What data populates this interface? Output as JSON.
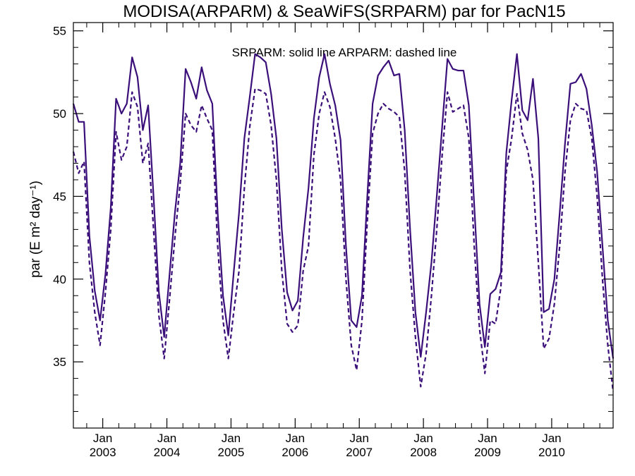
{
  "chart_data": {
    "type": "line",
    "title": "MODISA(ARPARM) & SeaWiFS(SRPARM)  par for PacN15",
    "annotation": "SRPARM: solid line   ARPARM: dashed line",
    "ylabel": "par (E m² day⁻¹)",
    "xlabel": "",
    "xlim": [
      2002.542,
      2010.958
    ],
    "ylim": [
      31,
      55.5
    ],
    "y_ticks": [
      35,
      40,
      45,
      50,
      55
    ],
    "x_ticks": [
      {
        "x": 2003.0,
        "top": "Jan",
        "bottom": "2003"
      },
      {
        "x": 2004.0,
        "top": "Jan",
        "bottom": "2004"
      },
      {
        "x": 2005.0,
        "top": "Jan",
        "bottom": "2005"
      },
      {
        "x": 2006.0,
        "top": "Jan",
        "bottom": "2006"
      },
      {
        "x": 2007.0,
        "top": "Jan",
        "bottom": "2007"
      },
      {
        "x": 2008.0,
        "top": "Jan",
        "bottom": "2008"
      },
      {
        "x": 2009.0,
        "top": "Jan",
        "bottom": "2009"
      },
      {
        "x": 2010.0,
        "top": "Jan",
        "bottom": "2010"
      }
    ],
    "line_color": "#3b0f7a",
    "series": [
      {
        "style": "solid",
        "x": [
          2002.542,
          2002.625,
          2002.708,
          2002.792,
          2002.875,
          2002.958,
          2003.042,
          2003.125,
          2003.208,
          2003.292,
          2003.375,
          2003.458,
          2003.542,
          2003.625,
          2003.708,
          2003.792,
          2003.875,
          2003.958,
          2004.042,
          2004.125,
          2004.208,
          2004.292,
          2004.375,
          2004.458,
          2004.542,
          2004.625,
          2004.708,
          2004.792,
          2004.875,
          2004.958,
          2005.042,
          2005.125,
          2005.208,
          2005.292,
          2005.375,
          2005.458,
          2005.542,
          2005.625,
          2005.708,
          2005.792,
          2005.875,
          2005.958,
          2006.042,
          2006.125,
          2006.208,
          2006.292,
          2006.375,
          2006.458,
          2006.542,
          2006.625,
          2006.708,
          2006.792,
          2006.875,
          2006.958,
          2007.042,
          2007.125,
          2007.208,
          2007.292,
          2007.375,
          2007.458,
          2007.542,
          2007.625,
          2007.708,
          2007.792,
          2007.875,
          2007.958,
          2008.042,
          2008.125,
          2008.208,
          2008.292,
          2008.375,
          2008.458,
          2008.542,
          2008.625,
          2008.708,
          2008.792,
          2008.875,
          2008.958,
          2009.042,
          2009.125,
          2009.208,
          2009.292,
          2009.375,
          2009.458,
          2009.542,
          2009.625,
          2009.708,
          2009.792,
          2009.875,
          2009.958,
          2010.042,
          2010.125,
          2010.208,
          2010.292,
          2010.375,
          2010.458,
          2010.542,
          2010.625,
          2010.708,
          2010.792,
          2010.875,
          2010.958
        ],
        "y": [
          50.6,
          49.5,
          49.5,
          42.6,
          39.3,
          37.5,
          40.3,
          44.3,
          50.9,
          50.0,
          50.6,
          53.4,
          52.2,
          49.0,
          50.5,
          45.0,
          39.2,
          36.5,
          40.3,
          44.0,
          47.0,
          52.7,
          51.9,
          50.9,
          52.8,
          51.4,
          50.6,
          44.0,
          39.0,
          36.6,
          40.4,
          44.0,
          48.5,
          51.0,
          53.6,
          53.4,
          53.1,
          51.2,
          48.5,
          43.0,
          39.2,
          38.1,
          38.7,
          42.5,
          45.5,
          49.7,
          52.2,
          53.6,
          51.8,
          50.5,
          48.4,
          42.0,
          37.5,
          37.1,
          39.0,
          45.0,
          50.6,
          52.3,
          52.8,
          53.2,
          52.3,
          52.4,
          49.0,
          43.0,
          38.0,
          35.3,
          38.0,
          41.0,
          45.0,
          49.2,
          53.3,
          52.7,
          52.6,
          52.6,
          50.5,
          44.5,
          38.5,
          35.9,
          39.1,
          39.4,
          40.4,
          47.6,
          50.8,
          53.6,
          50.2,
          49.6,
          52.1,
          48.5,
          38.0,
          38.2,
          40.0,
          44.0,
          48.2,
          51.8,
          51.9,
          52.4,
          51.5,
          49.3,
          46.5,
          42.0,
          37.5,
          35.2
        ]
      },
      {
        "style": "dashed",
        "x": [
          2002.542,
          2002.625,
          2002.708,
          2002.792,
          2002.875,
          2002.958,
          2003.042,
          2003.125,
          2003.208,
          2003.292,
          2003.375,
          2003.458,
          2003.542,
          2003.625,
          2003.708,
          2003.792,
          2003.875,
          2003.958,
          2004.042,
          2004.125,
          2004.208,
          2004.292,
          2004.375,
          2004.458,
          2004.542,
          2004.625,
          2004.708,
          2004.792,
          2004.875,
          2004.958,
          2005.042,
          2005.125,
          2005.208,
          2005.292,
          2005.375,
          2005.458,
          2005.542,
          2005.625,
          2005.708,
          2005.792,
          2005.875,
          2005.958,
          2006.042,
          2006.125,
          2006.208,
          2006.292,
          2006.375,
          2006.458,
          2006.542,
          2006.625,
          2006.708,
          2006.792,
          2006.875,
          2006.958,
          2007.042,
          2007.125,
          2007.208,
          2007.292,
          2007.375,
          2007.458,
          2007.542,
          2007.625,
          2007.708,
          2007.792,
          2007.875,
          2007.958,
          2008.042,
          2008.125,
          2008.208,
          2008.292,
          2008.375,
          2008.458,
          2008.542,
          2008.625,
          2008.708,
          2008.792,
          2008.875,
          2008.958,
          2009.042,
          2009.125,
          2009.208,
          2009.292,
          2009.375,
          2009.458,
          2009.542,
          2009.625,
          2009.708,
          2009.792,
          2009.875,
          2009.958,
          2010.042,
          2010.125,
          2010.208,
          2010.292,
          2010.375,
          2010.458,
          2010.542,
          2010.625,
          2010.708,
          2010.792,
          2010.875,
          2010.958
        ],
        "y": [
          47.7,
          46.4,
          47.1,
          41.0,
          38.0,
          36.0,
          39.2,
          43.0,
          48.9,
          47.2,
          48.0,
          51.3,
          50.4,
          47.0,
          48.2,
          43.0,
          37.8,
          35.2,
          38.8,
          42.5,
          45.8,
          50.0,
          49.3,
          48.9,
          50.5,
          49.7,
          49.0,
          42.0,
          37.5,
          35.2,
          38.0,
          40.5,
          45.5,
          49.2,
          51.5,
          51.4,
          51.2,
          49.3,
          46.0,
          40.5,
          37.3,
          36.8,
          37.2,
          40.5,
          42.0,
          47.5,
          50.0,
          51.3,
          50.4,
          48.5,
          46.0,
          40.0,
          36.0,
          34.5,
          37.5,
          43.5,
          48.8,
          50.0,
          50.6,
          50.3,
          50.1,
          49.8,
          46.5,
          40.5,
          36.5,
          33.5,
          35.5,
          39.0,
          43.0,
          47.5,
          51.3,
          50.1,
          50.3,
          50.5,
          48.5,
          42.0,
          37.0,
          34.3,
          37.5,
          37.3,
          39.5,
          46.5,
          48.5,
          51.2,
          48.8,
          47.8,
          46.0,
          41.0,
          35.8,
          36.4,
          38.5,
          42.0,
          46.5,
          49.6,
          50.6,
          50.3,
          50.2,
          48.5,
          45.0,
          40.0,
          36.0,
          33.2
        ]
      }
    ]
  }
}
